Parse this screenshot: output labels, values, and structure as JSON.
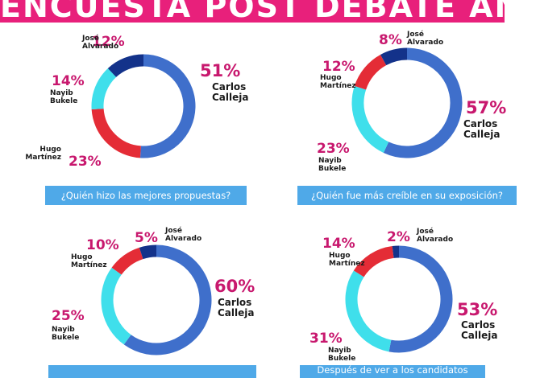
{
  "header": {
    "title": "ENCUESTA POST DEBATE ANEP"
  },
  "colors": {
    "Carlos Calleja": "#3f6fcb",
    "Hugo Martínez": "#e42c36",
    "Nayib Bukele": "#3fdfeb",
    "José Alvarado": "#13328a",
    "accent": "#e8207b",
    "question_bar": "#4fa9e8"
  },
  "chart_data": [
    {
      "type": "pie",
      "donut": true,
      "question": "¿Quién hizo las mejores propuestas?",
      "slices": [
        {
          "label": "Carlos Calleja",
          "value": 51,
          "text": "51%"
        },
        {
          "label": "Hugo Martínez",
          "value": 23,
          "text": "23%"
        },
        {
          "label": "Nayib Bukele",
          "value": 14,
          "text": "14%"
        },
        {
          "label": "José Alvarado",
          "value": 12,
          "text": "12%"
        }
      ]
    },
    {
      "type": "pie",
      "donut": true,
      "question": "¿Quién fue más creíble en su exposición?",
      "slices": [
        {
          "label": "Carlos Calleja",
          "value": 57,
          "text": "57%"
        },
        {
          "label": "Nayib Bukele",
          "value": 23,
          "text": "23%"
        },
        {
          "label": "Hugo Martínez",
          "value": 12,
          "text": "12%"
        },
        {
          "label": "José Alvarado",
          "value": 8,
          "text": "8%"
        }
      ]
    },
    {
      "type": "pie",
      "donut": true,
      "question": "",
      "slices": [
        {
          "label": "Carlos Calleja",
          "value": 60,
          "text": "60%"
        },
        {
          "label": "Nayib Bukele",
          "value": 25,
          "text": "25%"
        },
        {
          "label": "Hugo Martínez",
          "value": 10,
          "text": "10%"
        },
        {
          "label": "José Alvarado",
          "value": 5,
          "text": "5%"
        }
      ]
    },
    {
      "type": "pie",
      "donut": true,
      "question": "Después de ver a los candidatos",
      "slices": [
        {
          "label": "Carlos Calleja",
          "value": 53,
          "text": "53%"
        },
        {
          "label": "Nayib Bukele",
          "value": 31,
          "text": "31%"
        },
        {
          "label": "Hugo Martínez",
          "value": 14,
          "text": "14%"
        },
        {
          "label": "José Alvarado",
          "value": 2,
          "text": "2%"
        }
      ]
    }
  ]
}
